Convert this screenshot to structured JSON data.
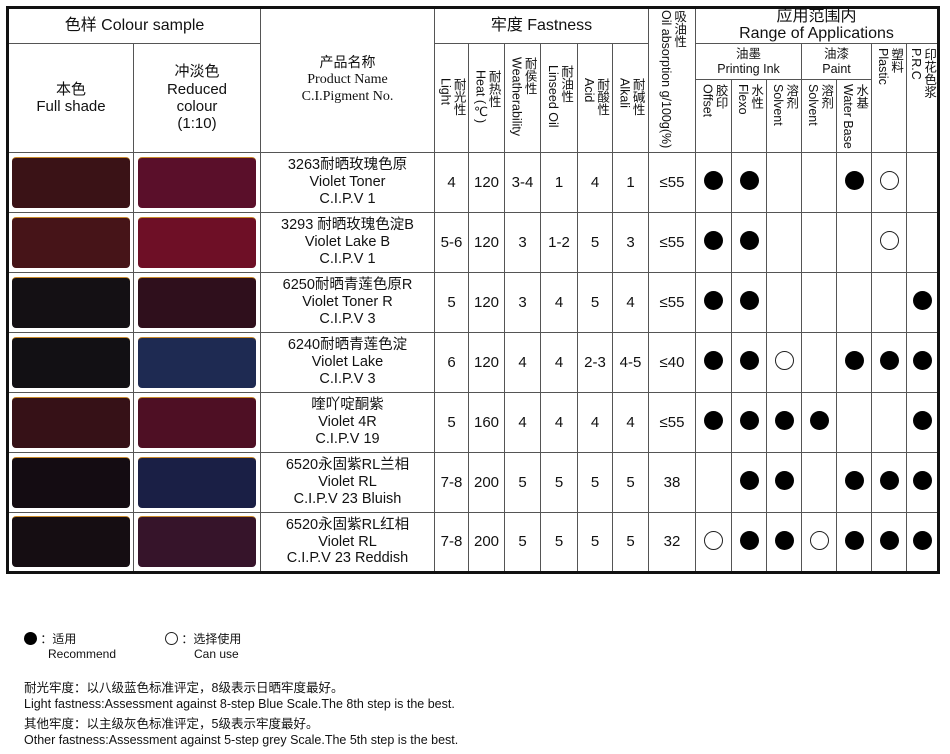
{
  "header": {
    "colour_sample": "色样 Colour sample",
    "full_shade_cn": "本色",
    "full_shade_en": "Full shade",
    "reduced_cn": "冲淡色",
    "reduced_en": "Reduced colour",
    "reduced_ratio": "(1:10)",
    "product_cn": "产品名称",
    "product_en": "Product Name",
    "product_ci": "C.I.Pigment No.",
    "fastness": "牢度 Fastness",
    "fastness_cols": [
      {
        "cn": "耐光性",
        "en": "Light"
      },
      {
        "cn": "耐热性",
        "en": "Heat (℃)"
      },
      {
        "cn": "耐侯性",
        "en": "Weatherability"
      },
      {
        "cn": "耐油性",
        "en": "Linseed Oil"
      },
      {
        "cn": "耐酸性",
        "en": "Acid"
      },
      {
        "cn": "耐碱性",
        "en": "Alkali"
      }
    ],
    "oil_cn": "吸油性",
    "oil_en": "Oil absorption g/100g(%)",
    "range_cn": "应用范围内",
    "range_en": "Range of Applications",
    "printing_ink_cn": "油墨",
    "printing_ink_en": "Printing Ink",
    "paint_cn": "油漆",
    "paint_en": "Paint",
    "app_cols": [
      {
        "cn": "胶印",
        "en": "Offset"
      },
      {
        "cn": "水性",
        "en": "Flexo"
      },
      {
        "cn": "溶剂",
        "en": "Solvent"
      },
      {
        "cn": "溶剂",
        "en": "Solvent"
      },
      {
        "cn": "水基",
        "en": "Water Base"
      },
      {
        "cn": "塑料",
        "en": "Plastic"
      },
      {
        "cn": "印花色浆",
        "en": "P.R.C"
      }
    ]
  },
  "rows": [
    {
      "full": "#3a1216",
      "reduced": "#5a0f2a",
      "name_cn": "3263耐晒玫瑰色原",
      "name_en": "Violet Toner",
      "ci": "C.I.P.V 1",
      "light": "4",
      "heat": "120",
      "weather": "3-4",
      "linseed": "1",
      "acid": "4",
      "alkali": "1",
      "oil": "≤55",
      "apps": [
        "R",
        "R",
        "",
        "",
        "R",
        "C",
        ""
      ]
    },
    {
      "full": "#461418",
      "reduced": "#6e0f26",
      "name_cn": "3293 耐晒玫瑰色淀B",
      "name_en": "Violet Lake B",
      "ci": "C.I.P.V 1",
      "light": "5-6",
      "heat": "120",
      "weather": "3",
      "linseed": "1-2",
      "acid": "5",
      "alkali": "3",
      "oil": "≤55",
      "apps": [
        "R",
        "R",
        "",
        "",
        "",
        "C",
        ""
      ]
    },
    {
      "full": "#141014",
      "reduced": "#2f0f1c",
      "name_cn": "6250耐晒青莲色原R",
      "name_en": "Violet Toner R",
      "ci": "C.I.P.V 3",
      "light": "5",
      "heat": "120",
      "weather": "3",
      "linseed": "4",
      "acid": "5",
      "alkali": "4",
      "oil": "≤55",
      "apps": [
        "R",
        "R",
        "",
        "",
        "",
        "",
        "R"
      ]
    },
    {
      "full": "#121014",
      "reduced": "#1e2a52",
      "name_cn": "6240耐晒青莲色淀",
      "name_en": "Violet Lake",
      "ci": "C.I.P.V 3",
      "light": "6",
      "heat": "120",
      "weather": "4",
      "linseed": "4",
      "acid": "2-3",
      "alkali": "4-5",
      "oil": "≤40",
      "apps": [
        "R",
        "R",
        "C",
        "",
        "R",
        "R",
        "R"
      ]
    },
    {
      "full": "#361117",
      "reduced": "#4e0f24",
      "name_cn": "喹吖啶酮紫",
      "name_en": "Violet 4R",
      "ci": "C.I.P.V 19",
      "light": "5",
      "heat": "160",
      "weather": "4",
      "linseed": "4",
      "acid": "4",
      "alkali": "4",
      "oil": "≤55",
      "apps": [
        "R",
        "R",
        "R",
        "R",
        "",
        "",
        "R"
      ]
    },
    {
      "full": "#140c12",
      "reduced": "#1a1f45",
      "name_cn": "6520永固紫RL兰相",
      "name_en": "Violet RL",
      "ci": "C.I.P.V 23 Bluish",
      "light": "7-8",
      "heat": "200",
      "weather": "5",
      "linseed": "5",
      "acid": "5",
      "alkali": "5",
      "oil": "38",
      "apps": [
        "",
        "R",
        "R",
        "",
        "R",
        "R",
        "R"
      ]
    },
    {
      "full": "#150d12",
      "reduced": "#36142a",
      "name_cn": "6520永固紫RL红相",
      "name_en": "Violet RL",
      "ci": "C.I.P.V 23 Reddish",
      "light": "7-8",
      "heat": "200",
      "weather": "5",
      "linseed": "5",
      "acid": "5",
      "alkali": "5",
      "oil": "32",
      "apps": [
        "C",
        "R",
        "R",
        "C",
        "R",
        "R",
        "R"
      ]
    }
  ],
  "legend": {
    "recommend_cn": "：适用",
    "recommend_en": "Recommend",
    "can_use_cn": "：选择使用",
    "can_use_en": "Can use"
  },
  "notes": {
    "light_cn": "耐光牢度：以八级蓝色标准评定，8级表示日晒牢度最好。",
    "light_en": "Light fastness:Assessment against 8-step Blue Scale.The 8th step is the best.",
    "other_cn": "其他牢度：以主级灰色标准评定，5级表示牢度最好。",
    "other_en": "Other fastness:Assessment against 5-step grey Scale.The 5th step is the best."
  }
}
